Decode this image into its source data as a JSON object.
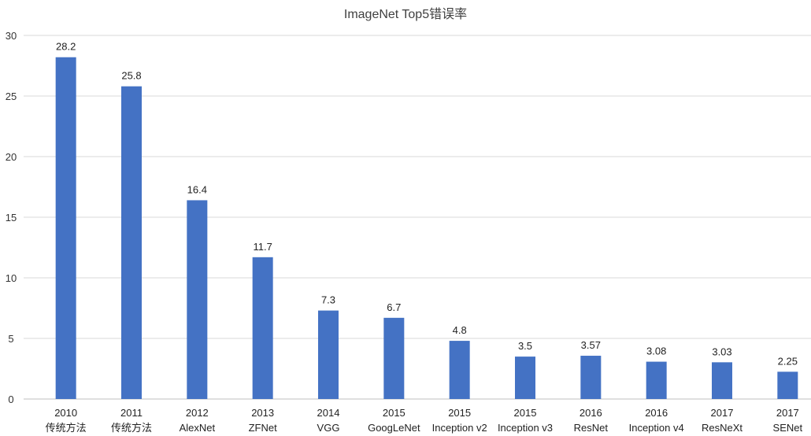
{
  "chart_data": {
    "type": "bar",
    "title": "ImageNet Top5错误率",
    "xlabel": "",
    "ylabel": "",
    "ylim": [
      0,
      30
    ],
    "yticks": [
      0,
      5,
      10,
      15,
      20,
      25,
      30
    ],
    "grid": true,
    "legend": "none",
    "bar_color": "#4472C4",
    "categories": [
      [
        "2010",
        "传统方法"
      ],
      [
        "2011",
        "传统方法"
      ],
      [
        "2012",
        "AlexNet"
      ],
      [
        "2013",
        "ZFNet"
      ],
      [
        "2014",
        "VGG"
      ],
      [
        "2015",
        "GoogLeNet"
      ],
      [
        "2015",
        "Inception v2"
      ],
      [
        "2015",
        "Inception v3"
      ],
      [
        "2016",
        "ResNet"
      ],
      [
        "2016",
        "Inception v4"
      ],
      [
        "2017",
        "ResNeXt"
      ],
      [
        "2017",
        "SENet"
      ]
    ],
    "values": [
      28.2,
      25.8,
      16.4,
      11.7,
      7.3,
      6.7,
      4.8,
      3.5,
      3.57,
      3.08,
      3.03,
      2.25
    ],
    "value_labels": [
      "28.2",
      "25.8",
      "16.4",
      "11.7",
      "7.3",
      "6.7",
      "4.8",
      "3.5",
      "3.57",
      "3.08",
      "3.03",
      "2.25"
    ]
  }
}
